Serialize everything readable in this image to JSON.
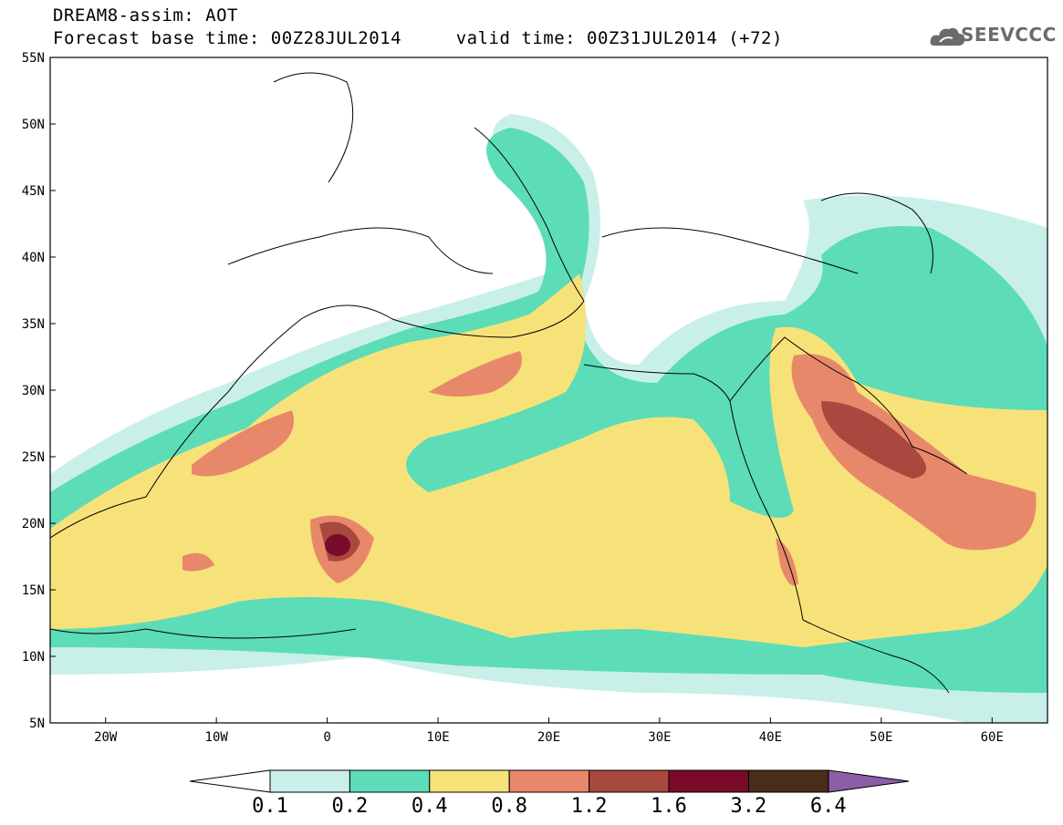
{
  "header": {
    "line1": "DREAM8-assim: AOT",
    "line2": "Forecast base time: 00Z28JUL2014     valid time: 00Z31JUL2014 (+72)"
  },
  "logo": {
    "text": "SEEVCCC",
    "icon": "cloud-icon"
  },
  "map": {
    "lat_ticks": [
      "55N",
      "50N",
      "45N",
      "40N",
      "35N",
      "30N",
      "25N",
      "20N",
      "15N",
      "10N",
      "5N"
    ],
    "lon_ticks": [
      "20W",
      "10W",
      "0",
      "10E",
      "20E",
      "30E",
      "40E",
      "50E",
      "60E"
    ],
    "lat_range": [
      5,
      55
    ],
    "lon_range": [
      -25,
      65
    ],
    "field": "AOT"
  },
  "colorbar": {
    "labels": [
      "0.1",
      "0.2",
      "0.4",
      "0.8",
      "1.2",
      "1.6",
      "3.2",
      "6.4"
    ],
    "colors": [
      "#ffffff",
      "#c8f0e8",
      "#5ddcb8",
      "#f7e27a",
      "#e8886a",
      "#a8483e",
      "#7a0a2a",
      "#4a2c1a",
      "#8a5fa8"
    ]
  }
}
